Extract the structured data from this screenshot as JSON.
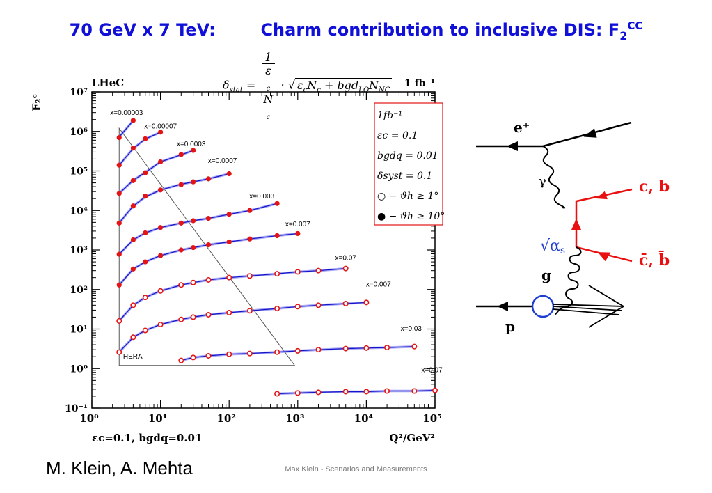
{
  "slide": {
    "title_left": "70 GeV x 7 TeV:",
    "title_right_main": "Charm contribution to inclusive DIS: F",
    "title_sub": "2",
    "title_sup": "CC",
    "formula": {
      "lhs": "δ",
      "lhs_sub": "stat",
      "num": "1",
      "den": "ε",
      "den_sub": "c",
      "den_tail": "N",
      "den_tail_sub": "c",
      "sqrt_text": "ε",
      "sqrt_parts": [
        "ε",
        "c",
        "N",
        "c",
        " + bgd",
        "LQ",
        "N",
        "NC"
      ]
    },
    "author": "M. Klein, A. Mehta",
    "footer": "Max Klein - Scenarios and Measurements"
  },
  "chart_data": {
    "type": "scatter",
    "title": "",
    "top_left_label": "LHeC",
    "top_right_label": "1 fb⁻¹",
    "ylabel": "F₂ᶜ",
    "xlabel": "Q²/GeV²",
    "bottom_left_label": "εc=0.1, bgdq=0.01",
    "xscale": "log",
    "yscale": "log",
    "xlim": [
      1,
      100000
    ],
    "ylim": [
      0.1,
      10000000
    ],
    "x_ticks": [
      "10⁰",
      "10¹",
      "10²",
      "10³",
      "10⁴",
      "10⁵"
    ],
    "y_ticks": [
      "10⁻¹",
      "10⁰",
      "10¹",
      "10²",
      "10³",
      "10⁴",
      "10⁵",
      "10⁶",
      "10⁷"
    ],
    "legend": {
      "placement": "top-right",
      "entries": [
        "1fb⁻¹",
        "εc = 0.1",
        "bgdq = 0.01",
        "δsyst = 0.1",
        "○ − ϑh ≥ 1°",
        "● − ϑh ≥ 10°"
      ]
    },
    "hera_label": "HERA",
    "hera_region": [
      [
        2.5,
        1200000
      ],
      [
        2.5,
        1.2
      ],
      [
        900,
        1.2
      ]
    ],
    "series": [
      {
        "name": "x=0.00003",
        "label_at": [
          3.2,
          2600000
        ],
        "q2": [
          2.5,
          4
        ],
        "f2": [
          700000,
          1900000
        ],
        "curve": [
          [
            2.5,
            720000
          ],
          [
            4,
            1880000
          ]
        ],
        "filled": true
      },
      {
        "name": "x=0.00007",
        "label_at": [
          10,
          1200000
        ],
        "q2": [
          2.5,
          4,
          6,
          10
        ],
        "f2": [
          140000,
          380000,
          650000,
          960000
        ],
        "curve": [
          [
            2.5,
            140000
          ],
          [
            4,
            370000
          ],
          [
            6,
            640000
          ],
          [
            10,
            960000
          ]
        ],
        "filled": true
      },
      {
        "name": "x=0.0003",
        "label_at": [
          28,
          420000
        ],
        "q2": [
          2.5,
          4,
          6,
          10,
          20,
          30
        ],
        "f2": [
          27000,
          57000,
          90000,
          170000,
          260000,
          330000
        ],
        "curve": [
          [
            2.5,
            27000
          ],
          [
            4,
            58000
          ],
          [
            6,
            92000
          ],
          [
            10,
            170000
          ],
          [
            20,
            255000
          ],
          [
            30,
            330000
          ]
        ],
        "filled": true
      },
      {
        "name": "x=0.0007",
        "label_at": [
          80,
          160000
        ],
        "q2": [
          2.5,
          4,
          6,
          10,
          20,
          30,
          50,
          100
        ],
        "f2": [
          4800,
          13000,
          23000,
          33000,
          45000,
          53000,
          63000,
          85000
        ],
        "curve": [
          [
            2.5,
            4800
          ],
          [
            4,
            13000
          ],
          [
            6,
            22000
          ],
          [
            10,
            33000
          ],
          [
            20,
            46000
          ],
          [
            30,
            53000
          ],
          [
            50,
            63000
          ],
          [
            100,
            85000
          ]
        ],
        "filled": true
      },
      {
        "name": "x=0.003",
        "label_at": [
          300,
          20000
        ],
        "q2": [
          2.5,
          4,
          6,
          10,
          20,
          30,
          50,
          100,
          200,
          500
        ],
        "f2": [
          780,
          1800,
          2700,
          3700,
          4800,
          5500,
          6300,
          8000,
          10000,
          15000
        ],
        "curve": [
          [
            2.5,
            780
          ],
          [
            4,
            1800
          ],
          [
            6,
            2700
          ],
          [
            10,
            3700
          ],
          [
            20,
            4800
          ],
          [
            30,
            5500
          ],
          [
            50,
            6300
          ],
          [
            100,
            8000
          ],
          [
            200,
            10000
          ],
          [
            500,
            15000
          ]
        ],
        "filled": true
      },
      {
        "name": "x=0.007",
        "label_at": [
          1000,
          4000
        ],
        "q2": [
          2.5,
          4,
          6,
          10,
          20,
          30,
          50,
          100,
          200,
          500,
          1000
        ],
        "f2": [
          130,
          330,
          500,
          720,
          1000,
          1150,
          1350,
          1600,
          1900,
          2300,
          2600
        ],
        "curve": [
          [
            2.5,
            130
          ],
          [
            4,
            330
          ],
          [
            6,
            500
          ],
          [
            10,
            720
          ],
          [
            20,
            1000
          ],
          [
            30,
            1150
          ],
          [
            50,
            1350
          ],
          [
            100,
            1600
          ],
          [
            200,
            1900
          ],
          [
            500,
            2300
          ],
          [
            1000,
            2600
          ]
        ],
        "filled": true
      },
      {
        "name": "x=0.07",
        "label_at": [
          5000,
          550
        ],
        "q2": [
          2.5,
          4,
          6,
          10,
          20,
          30,
          50,
          100,
          200,
          500,
          1000,
          2000,
          5000
        ],
        "f2": [
          16,
          40,
          63,
          92,
          130,
          150,
          175,
          200,
          220,
          250,
          280,
          300,
          340
        ],
        "curve": [
          [
            2.5,
            16
          ],
          [
            4,
            40
          ],
          [
            6,
            63
          ],
          [
            10,
            92
          ],
          [
            20,
            130
          ],
          [
            30,
            150
          ],
          [
            50,
            175
          ],
          [
            100,
            200
          ],
          [
            200,
            220
          ],
          [
            500,
            250
          ],
          [
            1000,
            280
          ],
          [
            2000,
            300
          ],
          [
            5000,
            340
          ]
        ],
        "filled": false
      },
      {
        "name": "x=0.007",
        "label_at": [
          15000,
          120
        ],
        "q2": [
          2.5,
          4,
          6,
          10,
          20,
          30,
          50,
          100,
          200,
          500,
          1000,
          2000,
          5000,
          10000
        ],
        "f2": [
          2.6,
          6.2,
          9.2,
          13,
          17.5,
          20,
          23,
          26,
          29,
          33,
          37,
          40,
          44,
          47
        ],
        "curve": [
          [
            2.5,
            2.6
          ],
          [
            4,
            6.2
          ],
          [
            6,
            9.2
          ],
          [
            10,
            13
          ],
          [
            20,
            17.5
          ],
          [
            30,
            20
          ],
          [
            50,
            23
          ],
          [
            100,
            26
          ],
          [
            200,
            29
          ],
          [
            500,
            33
          ],
          [
            1000,
            37
          ],
          [
            2000,
            40
          ],
          [
            5000,
            44
          ],
          [
            10000,
            47
          ]
        ],
        "filled": false
      },
      {
        "name": "x=0.03",
        "label_at": [
          45000,
          9
        ],
        "q2": [
          20,
          30,
          50,
          100,
          200,
          500,
          1000,
          2000,
          5000,
          10000,
          20000,
          50000
        ],
        "f2": [
          1.6,
          1.9,
          2.1,
          2.3,
          2.4,
          2.6,
          2.8,
          3.0,
          3.2,
          3.3,
          3.4,
          3.6
        ],
        "curve": [
          [
            20,
            1.6
          ],
          [
            30,
            1.9
          ],
          [
            50,
            2.1
          ],
          [
            100,
            2.3
          ],
          [
            200,
            2.4
          ],
          [
            500,
            2.6
          ],
          [
            1000,
            2.8
          ],
          [
            2000,
            3.0
          ],
          [
            5000,
            3.2
          ],
          [
            10000,
            3.3
          ],
          [
            20000,
            3.4
          ],
          [
            50000,
            3.6
          ]
        ],
        "filled": false
      },
      {
        "name": "x=0.07",
        "label_at": [
          90000,
          0.8
        ],
        "q2": [
          500,
          1000,
          2000,
          5000,
          10000,
          20000,
          50000,
          100000
        ],
        "f2": [
          0.23,
          0.24,
          0.25,
          0.26,
          0.26,
          0.27,
          0.27,
          0.28
        ],
        "curve": [
          [
            500,
            0.23
          ],
          [
            1000,
            0.24
          ],
          [
            2000,
            0.25
          ],
          [
            5000,
            0.26
          ],
          [
            10000,
            0.26
          ],
          [
            20000,
            0.27
          ],
          [
            50000,
            0.27
          ],
          [
            100000,
            0.28
          ]
        ],
        "filled": false
      }
    ]
  },
  "feynman": {
    "positron": "e⁺",
    "gamma": "γ",
    "cb_top": "c, b",
    "cb_bottom": "c̄, b̄",
    "alpha": "√α",
    "alpha_sub": "s",
    "gluon": "g",
    "proton": "p"
  }
}
